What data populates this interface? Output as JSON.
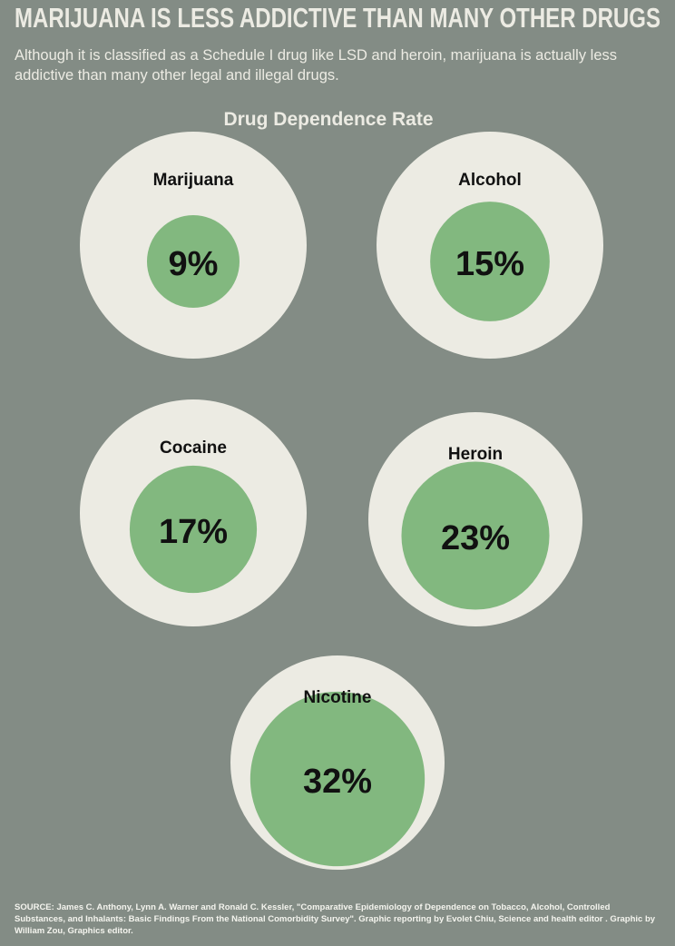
{
  "chart_data": {
    "type": "circle",
    "title": "MARIJUANA IS LESS ADDICTIVE THAN MANY OTHER DRUGS",
    "subtitle": "Although it is classified as a Schedule I drug like LSD and heroin, marijuana is actually less addictive than many other legal and illegal drugs.",
    "chart_title": "Drug Dependence Rate",
    "categories": [
      "Marijuana",
      "Alcohol",
      "Cocaine",
      "Heroin",
      "Nicotine"
    ],
    "values": [
      9,
      15,
      17,
      23,
      32
    ],
    "value_labels": [
      "9%",
      "15%",
      "17%",
      "23%",
      "32%"
    ],
    "color": "#82b87f",
    "source": "SOURCE: James C. Anthony, Lynn A. Warner and Ronald C. Kessler, \"Comparative Epidemiology of Dependence on Tobacco, Alcohol, Controlled Substances, and Inhalants: Basic Findings From the National Comorbidity Survey\". Graphic reporting by Evolet Chiu, Science and health editor . Graphic by William Zou, Graphics editor."
  }
}
